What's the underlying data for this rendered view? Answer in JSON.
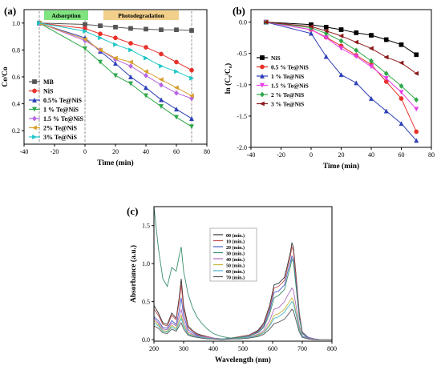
{
  "chart_data": [
    {
      "panel": "(a)",
      "type": "line",
      "xlabel": "Time (min)",
      "ylabel": "Ce/Co",
      "xlim": [
        -40,
        80
      ],
      "ylim": [
        0.1,
        1.1
      ],
      "xticks": [
        -40,
        -20,
        0,
        20,
        40,
        60,
        80
      ],
      "yticks": [
        0.2,
        0.4,
        0.6,
        0.8,
        1.0
      ],
      "annotations": [
        {
          "text": "Adsorption",
          "color": "#7fe37f"
        },
        {
          "text": "Photodegradation",
          "color": "#f2cf8a"
        }
      ],
      "legend_position": "left-middle",
      "x": [
        -30,
        0,
        10,
        20,
        30,
        40,
        50,
        60,
        70
      ],
      "series": [
        {
          "name": "MB",
          "color": "#555555",
          "marker": "square",
          "values": [
            1.0,
            0.99,
            0.98,
            0.97,
            0.96,
            0.955,
            0.95,
            0.95,
            0.945
          ]
        },
        {
          "name": "NiS",
          "color": "#e8302a",
          "marker": "circle",
          "values": [
            1.0,
            0.96,
            0.92,
            0.89,
            0.85,
            0.82,
            0.77,
            0.71,
            0.65
          ]
        },
        {
          "name": "0.5% Te@NiS",
          "color": "#2c3fb7",
          "marker": "triangle-up",
          "values": [
            1.0,
            0.89,
            0.79,
            0.7,
            0.6,
            0.52,
            0.43,
            0.36,
            0.29
          ]
        },
        {
          "name": "1 % Te@NiS",
          "color": "#2ea84a",
          "marker": "triangle-down",
          "values": [
            1.0,
            0.81,
            0.71,
            0.61,
            0.55,
            0.46,
            0.38,
            0.3,
            0.23
          ]
        },
        {
          "name": "1.5 % Te@NiS",
          "color": "#b565e0",
          "marker": "diamond",
          "values": [
            1.0,
            0.87,
            0.8,
            0.73,
            0.68,
            0.61,
            0.54,
            0.48,
            0.44
          ]
        },
        {
          "name": "2% Te@NiS",
          "color": "#d8a02e",
          "marker": "triangle-left",
          "values": [
            1.0,
            0.88,
            0.8,
            0.74,
            0.71,
            0.64,
            0.58,
            0.52,
            0.46
          ]
        },
        {
          "name": "3% Te@NiS",
          "color": "#1ec7c7",
          "marker": "triangle-right",
          "values": [
            1.0,
            0.94,
            0.89,
            0.84,
            0.8,
            0.74,
            0.68,
            0.64,
            0.59
          ]
        }
      ]
    },
    {
      "panel": "(b)",
      "type": "line",
      "xlabel": "Time (min)",
      "ylabel": "ln (C",
      "ylabel_sub1": "t",
      "ylabel_mid": "/C",
      "ylabel_sub2": "o",
      "ylabel_end": ")",
      "xlim": [
        -40,
        80
      ],
      "ylim": [
        -2.0,
        0.2
      ],
      "xticks": [
        -40,
        -20,
        0,
        20,
        40,
        60,
        80
      ],
      "yticks": [
        -2.0,
        -1.5,
        -1.0,
        -0.5,
        0.0
      ],
      "legend_position": "left-top",
      "x": [
        -30,
        0,
        10,
        20,
        30,
        40,
        50,
        60,
        70
      ],
      "series": [
        {
          "name": "NiS",
          "color": "#000000",
          "marker": "square",
          "values": [
            0.0,
            -0.04,
            -0.08,
            -0.12,
            -0.17,
            -0.21,
            -0.28,
            -0.36,
            -0.52
          ]
        },
        {
          "name": "0.5 % Te@NiS",
          "color": "#e8302a",
          "marker": "circle",
          "values": [
            0.0,
            -0.12,
            -0.24,
            -0.38,
            -0.53,
            -0.68,
            -0.95,
            -1.22,
            -1.75
          ]
        },
        {
          "name": "1 % Te@NiS",
          "color": "#2c3fb7",
          "marker": "triangle-up",
          "values": [
            0.0,
            -0.18,
            -0.55,
            -0.84,
            -0.97,
            -1.22,
            -1.42,
            -1.62,
            -1.89
          ]
        },
        {
          "name": "1.5 % Te@NiS",
          "color": "#e83ee8",
          "marker": "triangle-down",
          "values": [
            0.0,
            -0.12,
            -0.25,
            -0.42,
            -0.55,
            -0.71,
            -0.9,
            -1.12,
            -1.39
          ]
        },
        {
          "name": "2 % Te@NiS",
          "color": "#2ea84a",
          "marker": "diamond",
          "values": [
            0.0,
            -0.09,
            -0.18,
            -0.3,
            -0.45,
            -0.62,
            -0.82,
            -1.02,
            -1.24
          ]
        },
        {
          "name": "3 % Te@NiS",
          "color": "#8b1a1a",
          "marker": "triangle-left",
          "values": [
            0.0,
            -0.07,
            -0.14,
            -0.22,
            -0.32,
            -0.42,
            -0.56,
            -0.65,
            -0.82
          ]
        }
      ]
    },
    {
      "panel": "(c)",
      "type": "line",
      "xlabel": "Wavelength (nm)",
      "ylabel": "Absorbance (a.u.)",
      "xlim": [
        200,
        800
      ],
      "ylim": [
        -0.02,
        1.75
      ],
      "xticks": [
        200,
        300,
        400,
        500,
        600,
        700,
        800
      ],
      "yticks": [
        0.0,
        0.5,
        1.0,
        1.5
      ],
      "legend_position": "center",
      "x": [
        200,
        215,
        230,
        245,
        260,
        275,
        285,
        292,
        300,
        315,
        330,
        345,
        360,
        380,
        400,
        430,
        460,
        490,
        520,
        550,
        570,
        590,
        605,
        620,
        630,
        640,
        650,
        660,
        665,
        670,
        680,
        690,
        700,
        720,
        740,
        760,
        780,
        800
      ],
      "series": [
        {
          "name": "00 (min.)",
          "color": "#333333",
          "values": [
            0.45,
            0.35,
            0.22,
            0.2,
            0.35,
            0.28,
            0.55,
            0.8,
            0.45,
            0.18,
            0.12,
            0.08,
            0.06,
            0.04,
            0.02,
            0.01,
            0.02,
            0.04,
            0.06,
            0.12,
            0.22,
            0.45,
            0.72,
            0.74,
            0.78,
            0.82,
            0.98,
            1.15,
            1.27,
            1.22,
            0.8,
            0.35,
            0.1,
            0.03,
            0.01,
            0.0,
            0.0,
            0.0
          ]
        },
        {
          "name": "10 (min.)",
          "color": "#c05050",
          "values": [
            0.4,
            0.32,
            0.2,
            0.18,
            0.32,
            0.26,
            0.5,
            0.72,
            0.4,
            0.16,
            0.11,
            0.07,
            0.05,
            0.04,
            0.02,
            0.01,
            0.02,
            0.04,
            0.06,
            0.11,
            0.2,
            0.42,
            0.68,
            0.7,
            0.74,
            0.78,
            0.94,
            1.1,
            1.22,
            1.17,
            0.76,
            0.33,
            0.1,
            0.03,
            0.01,
            0.0,
            0.0,
            0.0
          ]
        },
        {
          "name": "20 (min.)",
          "color": "#4a5fc8",
          "values": [
            0.3,
            0.25,
            0.16,
            0.15,
            0.25,
            0.2,
            0.38,
            0.55,
            0.32,
            0.13,
            0.09,
            0.06,
            0.04,
            0.03,
            0.02,
            0.01,
            0.02,
            0.03,
            0.05,
            0.1,
            0.18,
            0.38,
            0.62,
            0.64,
            0.68,
            0.72,
            0.88,
            1.02,
            1.1,
            1.06,
            0.7,
            0.3,
            0.09,
            0.03,
            0.01,
            0.0,
            0.0,
            0.0
          ]
        },
        {
          "name": "30 (min.)",
          "color": "#3a8f6a",
          "values": [
            1.75,
            1.2,
            0.8,
            0.7,
            0.95,
            0.9,
            1.1,
            1.22,
            0.9,
            0.6,
            0.42,
            0.3,
            0.22,
            0.14,
            0.08,
            0.04,
            0.02,
            0.03,
            0.05,
            0.09,
            0.16,
            0.34,
            0.55,
            0.58,
            0.62,
            0.66,
            0.82,
            0.96,
            1.06,
            1.02,
            0.66,
            0.28,
            0.08,
            0.02,
            0.01,
            0.0,
            0.0,
            0.0
          ]
        },
        {
          "name": "40 (min.)",
          "color": "#b06ac0",
          "values": [
            0.28,
            0.22,
            0.14,
            0.13,
            0.22,
            0.18,
            0.3,
            0.4,
            0.25,
            0.1,
            0.07,
            0.05,
            0.04,
            0.03,
            0.02,
            0.01,
            0.01,
            0.02,
            0.04,
            0.07,
            0.12,
            0.25,
            0.4,
            0.42,
            0.46,
            0.5,
            0.58,
            0.64,
            0.68,
            0.65,
            0.42,
            0.18,
            0.05,
            0.02,
            0.01,
            0.0,
            0.0,
            0.0
          ]
        },
        {
          "name": "50 (min.)",
          "color": "#c8b43a",
          "values": [
            0.25,
            0.2,
            0.12,
            0.11,
            0.19,
            0.15,
            0.25,
            0.32,
            0.2,
            0.08,
            0.06,
            0.04,
            0.03,
            0.02,
            0.01,
            0.01,
            0.01,
            0.02,
            0.03,
            0.06,
            0.1,
            0.2,
            0.32,
            0.34,
            0.37,
            0.4,
            0.46,
            0.52,
            0.55,
            0.52,
            0.34,
            0.15,
            0.04,
            0.01,
            0.0,
            0.0,
            0.0,
            0.0
          ]
        },
        {
          "name": "60 (min.)",
          "color": "#48b8c8",
          "values": [
            0.22,
            0.18,
            0.11,
            0.1,
            0.17,
            0.13,
            0.22,
            0.28,
            0.18,
            0.07,
            0.05,
            0.04,
            0.03,
            0.02,
            0.01,
            0.01,
            0.01,
            0.02,
            0.03,
            0.05,
            0.09,
            0.18,
            0.28,
            0.3,
            0.33,
            0.36,
            0.42,
            0.47,
            0.5,
            0.48,
            0.31,
            0.13,
            0.04,
            0.01,
            0.0,
            0.0,
            0.0,
            0.0
          ]
        },
        {
          "name": "70 (min.)",
          "color": "#555555",
          "values": [
            0.18,
            0.15,
            0.09,
            0.08,
            0.14,
            0.11,
            0.18,
            0.22,
            0.14,
            0.06,
            0.04,
            0.03,
            0.02,
            0.01,
            0.01,
            0.0,
            0.01,
            0.01,
            0.02,
            0.04,
            0.07,
            0.14,
            0.21,
            0.23,
            0.25,
            0.27,
            0.32,
            0.37,
            0.4,
            0.38,
            0.24,
            0.1,
            0.03,
            0.01,
            0.0,
            0.0,
            0.0,
            0.0
          ]
        }
      ]
    }
  ]
}
